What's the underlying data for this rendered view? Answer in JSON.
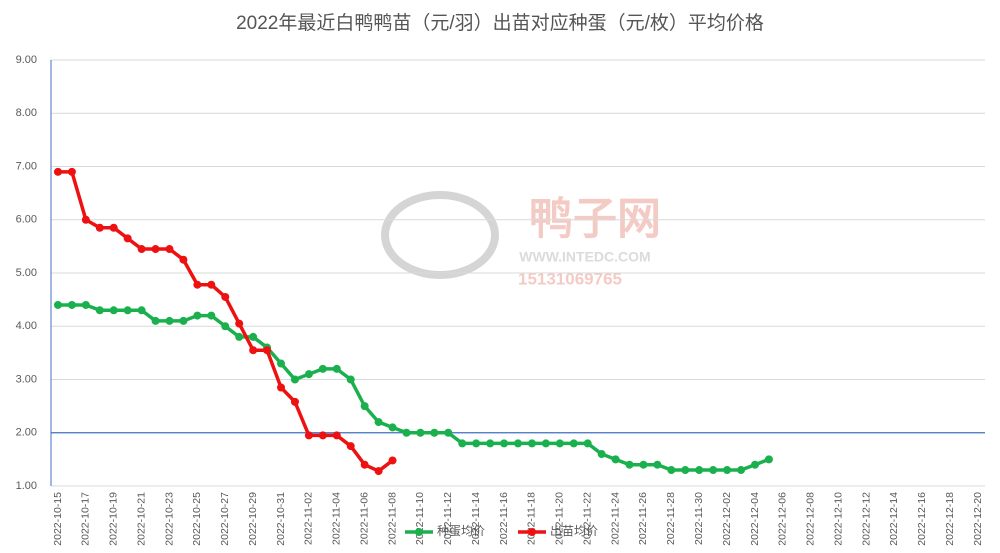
{
  "chart_data": {
    "type": "line",
    "title": "2022年最近白鸭鸭苗（元/羽）出苗对应种蛋（元/枚）平均价格",
    "annotations": [
      "鸭子网",
      "WWW.INTEDC.COM",
      "15131069765"
    ],
    "categories": [
      "2022-10-15",
      null,
      "2022-10-17",
      null,
      "2022-10-19",
      null,
      "2022-10-21",
      null,
      "2022-10-23",
      null,
      "2022-10-25",
      null,
      "2022-10-27",
      null,
      "2022-10-29",
      null,
      "2022-10-31",
      null,
      "2022-11-02",
      null,
      "2022-11-04",
      null,
      "2022-11-06",
      null,
      "2022-11-08",
      null,
      "2022-11-10",
      null,
      "2022-11-12",
      null,
      "2022-11-14",
      null,
      "2022-11-16",
      null,
      "2022-11-18",
      null,
      "2022-11-20",
      null,
      "2022-11-22",
      null,
      "2022-11-24",
      null,
      "2022-11-26",
      null,
      "2022-11-28",
      null,
      "2022-11-30",
      null,
      "2022-12-02",
      null,
      "2022-12-04",
      null,
      "2022-12-06",
      null,
      "2022-12-08",
      null,
      "2022-12-10",
      null,
      "2022-12-12",
      null,
      "2022-12-14",
      null,
      "2022-12-16",
      null,
      "2022-12-18",
      null,
      "2022-12-20"
    ],
    "series": [
      {
        "name": "种蛋均价",
        "color": "#1ab04d",
        "values": [
          4.4,
          4.4,
          4.4,
          4.3,
          4.3,
          4.3,
          4.3,
          4.1,
          4.1,
          4.1,
          4.2,
          4.2,
          4.0,
          3.8,
          3.8,
          3.6,
          3.3,
          3.0,
          3.1,
          3.2,
          3.2,
          3.0,
          2.5,
          2.2,
          2.1,
          2.0,
          2.0,
          2.0,
          2.0,
          1.8,
          1.8,
          1.8,
          1.8,
          1.8,
          1.8,
          1.8,
          1.8,
          1.8,
          1.8,
          1.6,
          1.5,
          1.4,
          1.4,
          1.4,
          1.3,
          1.3,
          1.3,
          1.3,
          1.3,
          1.3,
          1.4,
          1.5,
          null,
          null,
          null,
          null,
          null,
          null,
          null,
          null,
          null,
          null,
          null,
          null,
          null,
          null,
          null
        ]
      },
      {
        "name": "出苗均价",
        "color": "#ee1111",
        "values": [
          6.9,
          6.9,
          6.0,
          5.85,
          5.85,
          5.65,
          5.45,
          5.45,
          5.45,
          5.25,
          4.78,
          4.78,
          4.55,
          4.05,
          3.55,
          3.55,
          2.85,
          2.58,
          1.95,
          1.95,
          1.95,
          1.75,
          1.4,
          1.28,
          1.48,
          null,
          null,
          null,
          null,
          null,
          null,
          null,
          null,
          null,
          null,
          null,
          null,
          null,
          null,
          null,
          null,
          null,
          null,
          null,
          null,
          null,
          null,
          null,
          null,
          null,
          null,
          null,
          null,
          null,
          null,
          null,
          null,
          null,
          null,
          null,
          null,
          null,
          null,
          null,
          null,
          null,
          null
        ]
      }
    ],
    "ylim": [
      1,
      9
    ],
    "yticks": [
      {
        "value": 1,
        "label": "1.00"
      },
      {
        "value": 2,
        "label": "2.00"
      },
      {
        "value": 3,
        "label": "3.00"
      },
      {
        "value": 4,
        "label": "4.00"
      },
      {
        "value": 5,
        "label": "5.00"
      },
      {
        "value": 6,
        "label": "6.00"
      },
      {
        "value": 7,
        "label": "7.00"
      },
      {
        "value": 8,
        "label": "8.00"
      },
      {
        "value": 9,
        "label": "9.00"
      }
    ],
    "x_axis_crosses": 2,
    "grid": true,
    "legend": "bottom"
  }
}
